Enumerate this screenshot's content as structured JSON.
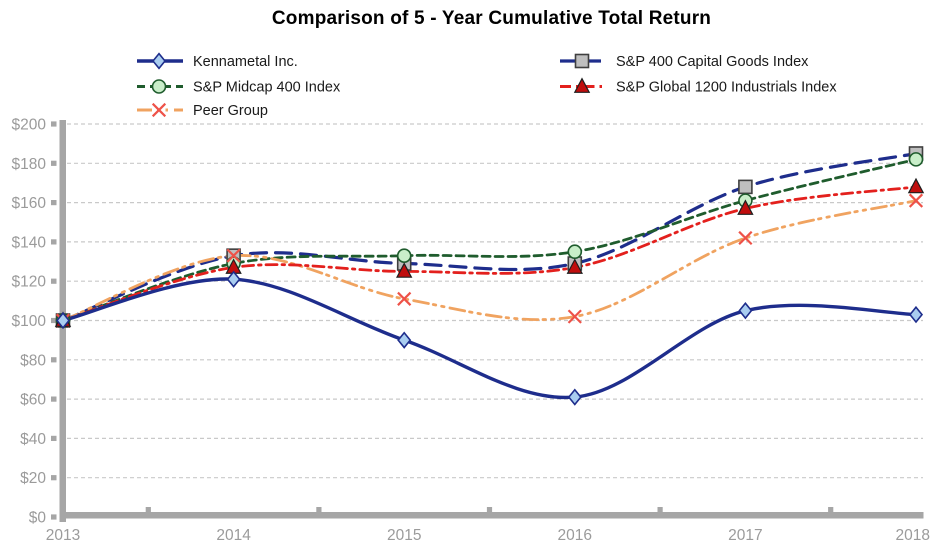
{
  "chart_data": {
    "type": "line",
    "title": "Comparison of 5 - Year Cumulative Total Return",
    "xlabel": "",
    "ylabel": "",
    "categories": [
      "2013",
      "2014",
      "2015",
      "2016",
      "2017",
      "2018"
    ],
    "y_axis": {
      "min": 0,
      "max": 200,
      "step": 20,
      "tick_prefix": "$",
      "tick_labels": [
        "$0",
        "$20",
        "$40",
        "$60",
        "$80",
        "$100",
        "$120",
        "$140",
        "$160",
        "$180",
        "$200"
      ]
    },
    "grid": "horizontal-dashed",
    "legend_position": "top-two-columns",
    "series": [
      {
        "name": "Kennametal Inc.",
        "slug": "kennametal",
        "values": [
          100,
          121,
          90,
          61,
          105,
          103
        ],
        "color": "#1e2d8c",
        "dash": [],
        "width": 3.4,
        "z": 5,
        "legend_col": 0,
        "legend_row": 0,
        "marker": {
          "shape": "diamond",
          "fill": "#a9cdf0",
          "stroke": "#1e2d8c"
        }
      },
      {
        "name": "S&P Midcap 400 Index",
        "slug": "sp-midcap-400",
        "values": [
          100,
          129,
          133,
          135,
          161,
          182
        ],
        "color": "#1f5c2d",
        "dash": [
          8,
          5
        ],
        "width": 2.8,
        "z": 2,
        "legend_col": 0,
        "legend_row": 1,
        "marker": {
          "shape": "circle",
          "fill": "#c9eec9",
          "stroke": "#1f5c2d"
        }
      },
      {
        "name": "Peer Group",
        "slug": "peer-group",
        "values": [
          100,
          133,
          111,
          102,
          142,
          161
        ],
        "color": "#f0a360",
        "dash": [
          15,
          5,
          2.5,
          6,
          2.5,
          6
        ],
        "width": 2.8,
        "z": 3,
        "legend_col": 0,
        "legend_row": 2,
        "marker": {
          "shape": "x",
          "fill": "none",
          "stroke": "#ee5248"
        }
      },
      {
        "name": "S&P 400 Capital Goods Index",
        "slug": "sp-400-capital-goods",
        "values": [
          100,
          133,
          129,
          129,
          168,
          185
        ],
        "color": "#1e2d8c",
        "dash": [
          16,
          9
        ],
        "width": 3.2,
        "z": 1,
        "legend_col": 1,
        "legend_row": 0,
        "marker": {
          "shape": "square",
          "fill": "#bfbfbf",
          "stroke": "#3f3f3f"
        }
      },
      {
        "name": "S&P Global 1200 Industrials Index",
        "slug": "sp-global-1200-industrials",
        "values": [
          100,
          127,
          125,
          127,
          157,
          168
        ],
        "color": "#e3201d",
        "dash": [
          11,
          5,
          2.5,
          5
        ],
        "width": 2.8,
        "z": 4,
        "legend_col": 1,
        "legend_row": 1,
        "marker": {
          "shape": "triangle",
          "fill": "#c00d0d",
          "stroke": "#1f1f1f"
        }
      }
    ],
    "colors": {
      "axis": "#a6a6a6",
      "gridline": "#c9c9c9",
      "tick_label": "#9b9b9b",
      "legend_text": "#1a1a1a",
      "title": "#000000"
    }
  }
}
